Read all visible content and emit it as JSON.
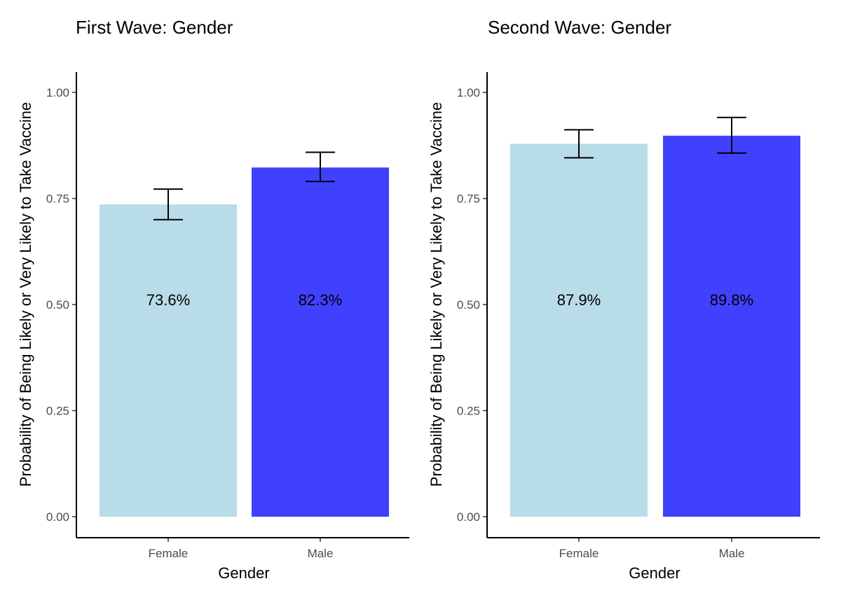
{
  "chart_data": [
    {
      "type": "bar",
      "title": "First Wave: Gender",
      "xlabel": "Gender",
      "ylabel": "Probability of Being Likely or Very Likely to Take Vaccine",
      "ylim": [
        0,
        1.05
      ],
      "yticks": [
        "0.00",
        "0.25",
        "0.50",
        "0.75",
        "1.00"
      ],
      "categories": [
        "Female",
        "Male"
      ],
      "values": [
        0.736,
        0.823
      ],
      "error_low": [
        0.7,
        0.79
      ],
      "error_high": [
        0.772,
        0.859
      ],
      "data_labels": [
        "73.6%",
        "82.3%"
      ],
      "colors": [
        "#b8dce8",
        "#4040ff"
      ],
      "grid": false,
      "legend": "none"
    },
    {
      "type": "bar",
      "title": "Second Wave: Gender",
      "xlabel": "Gender",
      "ylabel": "Probability of Being Likely or Very Likely to Take Vaccine",
      "ylim": [
        0,
        1.05
      ],
      "yticks": [
        "0.00",
        "0.25",
        "0.50",
        "0.75",
        "1.00"
      ],
      "categories": [
        "Female",
        "Male"
      ],
      "values": [
        0.879,
        0.898
      ],
      "error_low": [
        0.846,
        0.857
      ],
      "error_high": [
        0.912,
        0.941
      ],
      "data_labels": [
        "87.9%",
        "89.8%"
      ],
      "colors": [
        "#b8dce8",
        "#4040ff"
      ],
      "grid": false,
      "legend": "none"
    }
  ]
}
